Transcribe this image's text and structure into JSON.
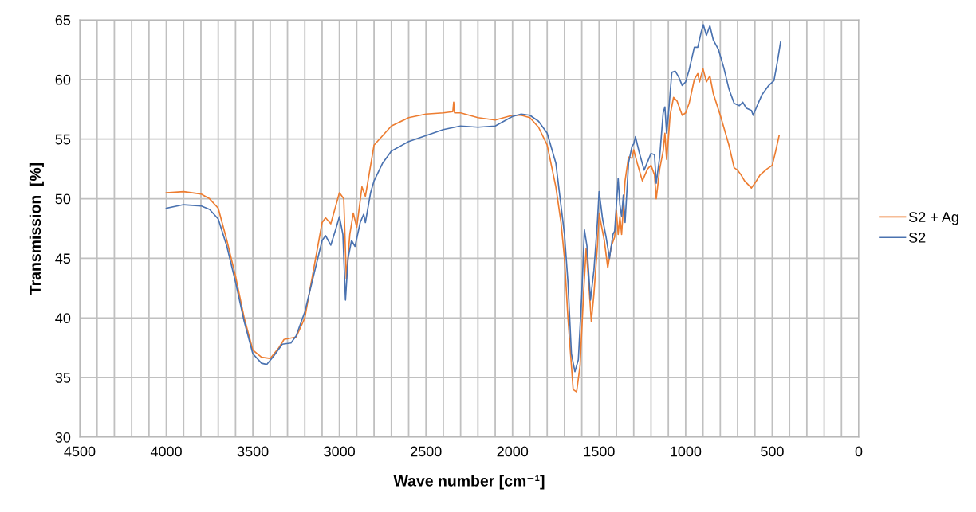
{
  "chart_data": {
    "type": "line",
    "xlabel": "Wave number [cm⁻¹]",
    "ylabel": "Transmission  [%]",
    "xlim": [
      4500,
      0
    ],
    "ylim": [
      30,
      65
    ],
    "xticks": [
      4500,
      {
        "value": 4400,
        "label": null
      },
      {
        "value": 4300,
        "label": null
      },
      {
        "value": 4200,
        "label": null
      },
      {
        "value": 4100,
        "label": null
      },
      4000,
      {
        "value": 3900,
        "label": null
      },
      {
        "value": 3800,
        "label": null
      },
      {
        "value": 3700,
        "label": null
      },
      {
        "value": 3600,
        "label": null
      },
      3500,
      {
        "value": 3400,
        "label": null
      },
      {
        "value": 3300,
        "label": null
      },
      {
        "value": 3200,
        "label": null
      },
      {
        "value": 3100,
        "label": null
      },
      3000,
      {
        "value": 2900,
        "label": null
      },
      {
        "value": 2800,
        "label": null
      },
      {
        "value": 2700,
        "label": null
      },
      {
        "value": 2600,
        "label": null
      },
      2500,
      {
        "value": 2400,
        "label": null
      },
      {
        "value": 2300,
        "label": null
      },
      {
        "value": 2200,
        "label": null
      },
      {
        "value": 2100,
        "label": null
      },
      2000,
      {
        "value": 1900,
        "label": null
      },
      {
        "value": 1800,
        "label": null
      },
      {
        "value": 1700,
        "label": null
      },
      {
        "value": 1600,
        "label": null
      },
      1500,
      {
        "value": 1400,
        "label": null
      },
      {
        "value": 1300,
        "label": null
      },
      {
        "value": 1200,
        "label": null
      },
      {
        "value": 1100,
        "label": null
      },
      1000,
      {
        "value": 900,
        "label": null
      },
      {
        "value": 800,
        "label": null
      },
      {
        "value": 700,
        "label": null
      },
      {
        "value": 600,
        "label": null
      },
      500,
      {
        "value": 400,
        "label": null
      },
      {
        "value": 300,
        "label": null
      },
      {
        "value": 200,
        "label": null
      },
      {
        "value": 100,
        "label": null
      },
      0
    ],
    "yticks": [
      30,
      35,
      40,
      45,
      50,
      55,
      60,
      65
    ],
    "grid": true,
    "legend": "right",
    "marker": "none",
    "line_style": "solid",
    "series": [
      {
        "name": "S2 + Ag",
        "color": "#ed7d31",
        "x": [
          4000,
          3900,
          3800,
          3750,
          3700,
          3650,
          3600,
          3550,
          3500,
          3450,
          3400,
          3350,
          3320,
          3250,
          3200,
          3150,
          3100,
          3080,
          3050,
          3000,
          2975,
          2960,
          2940,
          2920,
          2900,
          2870,
          2850,
          2800,
          2700,
          2600,
          2500,
          2400,
          2345,
          2340,
          2335,
          2300,
          2200,
          2100,
          2000,
          1950,
          1900,
          1850,
          1800,
          1750,
          1720,
          1700,
          1680,
          1650,
          1630,
          1610,
          1590,
          1575,
          1560,
          1545,
          1530,
          1510,
          1500,
          1490,
          1470,
          1450,
          1430,
          1410,
          1400,
          1390,
          1380,
          1370,
          1350,
          1330,
          1310,
          1300,
          1280,
          1250,
          1220,
          1200,
          1180,
          1170,
          1150,
          1130,
          1120,
          1110,
          1100,
          1090,
          1070,
          1050,
          1020,
          1000,
          980,
          950,
          930,
          920,
          900,
          880,
          860,
          840,
          800,
          750,
          720,
          700,
          680,
          660,
          620,
          600,
          570,
          530,
          500,
          480,
          460
        ],
        "values": [
          50.5,
          50.6,
          50.4,
          50.0,
          49.2,
          46.5,
          43.5,
          40,
          37.3,
          36.7,
          36.6,
          37.5,
          38.2,
          38.4,
          40,
          44,
          48,
          48.4,
          47.9,
          50.5,
          50,
          43.3,
          47,
          48.8,
          47.6,
          51,
          50.2,
          54.5,
          56.1,
          56.8,
          57.1,
          57.2,
          57.3,
          58.1,
          57.2,
          57.2,
          56.8,
          56.6,
          57.0,
          57.0,
          56.8,
          56,
          54.5,
          51,
          48,
          45,
          40,
          34.0,
          33.8,
          36,
          42,
          45.8,
          43,
          39.7,
          42,
          46,
          48.8,
          48,
          46.5,
          44.2,
          46,
          46.8,
          49,
          47,
          48.5,
          47,
          51.5,
          53.5,
          53.4,
          54.1,
          53,
          51.5,
          52.5,
          52.8,
          52,
          50.0,
          52.5,
          54,
          55.5,
          53.3,
          55,
          57,
          58.5,
          58.2,
          57.0,
          57.2,
          58,
          60.0,
          60.5,
          59.8,
          60.9,
          59.8,
          60.3,
          58.8,
          57,
          54.5,
          52.6,
          52.4,
          52.0,
          51.5,
          50.9,
          51.3,
          52,
          52.5,
          52.8,
          54,
          55.3
        ]
      },
      {
        "name": "S2",
        "color": "#4a72b0",
        "x": [
          4000,
          3900,
          3800,
          3750,
          3700,
          3650,
          3600,
          3550,
          3500,
          3450,
          3420,
          3380,
          3330,
          3280,
          3250,
          3200,
          3150,
          3100,
          3080,
          3050,
          3020,
          3000,
          2980,
          2965,
          2950,
          2930,
          2910,
          2880,
          2860,
          2850,
          2820,
          2800,
          2750,
          2700,
          2600,
          2500,
          2400,
          2300,
          2200,
          2100,
          2050,
          2000,
          1950,
          1900,
          1850,
          1800,
          1750,
          1700,
          1680,
          1660,
          1640,
          1620,
          1600,
          1585,
          1570,
          1550,
          1530,
          1510,
          1500,
          1480,
          1460,
          1440,
          1420,
          1410,
          1390,
          1380,
          1370,
          1360,
          1350,
          1330,
          1310,
          1300,
          1290,
          1270,
          1240,
          1200,
          1180,
          1170,
          1150,
          1130,
          1120,
          1110,
          1100,
          1080,
          1060,
          1040,
          1020,
          1000,
          980,
          950,
          930,
          910,
          898,
          880,
          860,
          840,
          810,
          780,
          750,
          720,
          690,
          670,
          650,
          620,
          610,
          590,
          560,
          520,
          490,
          470,
          451
        ],
        "values": [
          49.2,
          49.5,
          49.4,
          49.1,
          48.3,
          46,
          43,
          39.7,
          37,
          36.2,
          36.1,
          36.8,
          37.8,
          37.9,
          38.5,
          40.5,
          43.5,
          46.5,
          46.9,
          46.1,
          47.5,
          48.5,
          47,
          41.5,
          45,
          46.5,
          46,
          48,
          48.7,
          48,
          50.5,
          51.5,
          53,
          54.0,
          54.8,
          55.3,
          55.8,
          56.1,
          56.0,
          56.1,
          56.5,
          56.9,
          57.1,
          57.0,
          56.5,
          55.5,
          53,
          47,
          43,
          37,
          35.5,
          36.5,
          42,
          47.4,
          46,
          41.5,
          44,
          48,
          50.6,
          48.3,
          46.8,
          45,
          47,
          47.3,
          51.7,
          49.5,
          48.5,
          50.3,
          48,
          53,
          54.4,
          54.6,
          55.2,
          54,
          52.4,
          53.8,
          53.7,
          51.3,
          53.5,
          57.2,
          57.7,
          55.5,
          57,
          60.6,
          60.7,
          60.2,
          59.5,
          59.8,
          60.8,
          62.7,
          62.7,
          64,
          64.6,
          63.7,
          64.5,
          63.3,
          62.5,
          61,
          59.2,
          58,
          57.8,
          58.1,
          57.6,
          57.4,
          57.0,
          57.7,
          58.7,
          59.5,
          59.9,
          61.5,
          63.2
        ]
      }
    ]
  }
}
